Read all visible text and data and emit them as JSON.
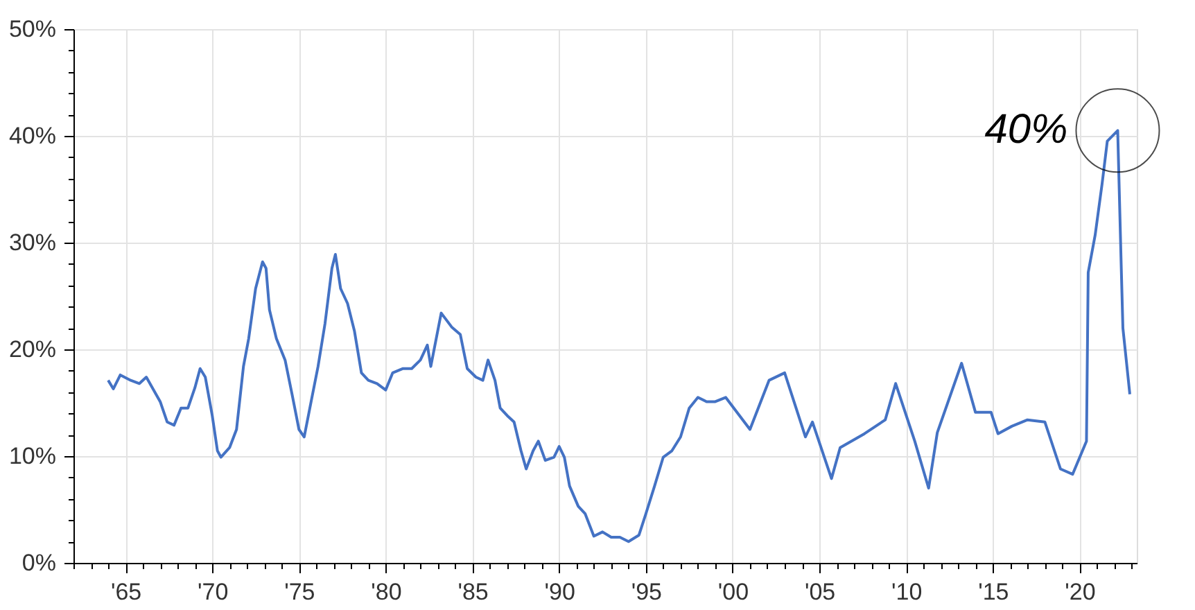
{
  "chart_data": {
    "type": "line",
    "x": [
      1964.0,
      1964.3,
      1964.7,
      1965.3,
      1965.8,
      1966.2,
      1967.0,
      1967.4,
      1967.8,
      1968.2,
      1968.6,
      1969.0,
      1969.3,
      1969.6,
      1970.0,
      1970.3,
      1970.5,
      1971.0,
      1971.4,
      1971.8,
      1972.1,
      1972.5,
      1972.9,
      1973.1,
      1973.3,
      1973.7,
      1974.2,
      1974.6,
      1975.0,
      1975.3,
      1975.7,
      1976.1,
      1976.5,
      1976.9,
      1977.1,
      1977.4,
      1977.8,
      1978.2,
      1978.6,
      1979.0,
      1979.5,
      1980.0,
      1980.4,
      1981.0,
      1981.5,
      1982.0,
      1982.4,
      1982.6,
      1983.2,
      1983.8,
      1984.3,
      1984.7,
      1985.2,
      1985.6,
      1985.9,
      1986.3,
      1986.6,
      1987.0,
      1987.4,
      1987.8,
      1988.1,
      1988.5,
      1988.8,
      1989.2,
      1989.7,
      1990.0,
      1990.3,
      1990.6,
      1991.1,
      1991.5,
      1992.0,
      1992.5,
      1993.0,
      1993.5,
      1994.0,
      1994.6,
      1995.0,
      1995.5,
      1996.0,
      1996.5,
      1997.0,
      1997.5,
      1998.0,
      1998.5,
      1999.0,
      1999.6,
      2001.0,
      2002.1,
      2003.0,
      2004.2,
      2004.6,
      2005.7,
      2006.2,
      2007.6,
      2008.8,
      2009.4,
      2010.5,
      2011.3,
      2011.8,
      2013.2,
      2014.0,
      2014.9,
      2015.3,
      2016.1,
      2017.0,
      2018.0,
      2018.9,
      2019.6,
      2020.4,
      2020.5,
      2020.9,
      2021.3,
      2021.6,
      2022.2,
      2022.4,
      2022.5,
      2022.9
    ],
    "series": [
      {
        "color": "#4472c4",
        "values": [
          17.1,
          16.3,
          17.6,
          17.1,
          16.8,
          17.4,
          15.1,
          13.2,
          12.9,
          14.5,
          14.5,
          16.4,
          18.2,
          17.4,
          13.8,
          10.5,
          9.9,
          10.8,
          12.5,
          18.4,
          21.0,
          25.7,
          28.2,
          27.6,
          23.7,
          21.0,
          19.0,
          15.8,
          12.5,
          11.8,
          15.1,
          18.4,
          22.4,
          27.6,
          28.9,
          25.7,
          24.3,
          21.7,
          17.8,
          17.1,
          16.8,
          16.2,
          17.8,
          18.2,
          18.2,
          19.0,
          20.4,
          18.4,
          23.4,
          22.1,
          21.4,
          18.2,
          17.4,
          17.1,
          19.0,
          17.1,
          14.5,
          13.8,
          13.2,
          10.5,
          8.8,
          10.5,
          11.4,
          9.6,
          9.9,
          10.9,
          9.9,
          7.2,
          5.3,
          4.6,
          2.5,
          2.9,
          2.4,
          2.4,
          2.0,
          2.6,
          4.6,
          7.2,
          9.9,
          10.5,
          11.8,
          14.5,
          15.5,
          15.1,
          15.1,
          15.5,
          12.5,
          17.1,
          17.8,
          11.8,
          13.2,
          7.9,
          10.8,
          12.1,
          13.4,
          16.8,
          11.4,
          7.0,
          12.2,
          18.7,
          14.1,
          14.1,
          12.1,
          12.8,
          13.4,
          13.2,
          8.8,
          8.3,
          11.4,
          27.2,
          30.7,
          35.5,
          39.5,
          40.5,
          28.0,
          22.0,
          15.8
        ]
      }
    ],
    "xlim": [
      1962,
      2023.3
    ],
    "xticks": [
      {
        "value": 1962,
        "label": null
      },
      {
        "value": 1963,
        "label": null
      },
      {
        "value": 1964,
        "label": null
      },
      {
        "value": 1965,
        "label": "'65"
      },
      {
        "value": 1966,
        "label": null
      },
      {
        "value": 1967,
        "label": null
      },
      {
        "value": 1968,
        "label": null
      },
      {
        "value": 1969,
        "label": null
      },
      {
        "value": 1970,
        "label": "'70"
      },
      {
        "value": 1971,
        "label": null
      },
      {
        "value": 1972,
        "label": null
      },
      {
        "value": 1973,
        "label": null
      },
      {
        "value": 1974,
        "label": null
      },
      {
        "value": 1975,
        "label": "'75"
      },
      {
        "value": 1976,
        "label": null
      },
      {
        "value": 1977,
        "label": null
      },
      {
        "value": 1978,
        "label": null
      },
      {
        "value": 1979,
        "label": null
      },
      {
        "value": 1980,
        "label": "'80"
      },
      {
        "value": 1981,
        "label": null
      },
      {
        "value": 1982,
        "label": null
      },
      {
        "value": 1983,
        "label": null
      },
      {
        "value": 1984,
        "label": null
      },
      {
        "value": 1985,
        "label": "'85"
      },
      {
        "value": 1986,
        "label": null
      },
      {
        "value": 1987,
        "label": null
      },
      {
        "value": 1988,
        "label": null
      },
      {
        "value": 1989,
        "label": null
      },
      {
        "value": 1990,
        "label": "'90"
      },
      {
        "value": 1991,
        "label": null
      },
      {
        "value": 1992,
        "label": null
      },
      {
        "value": 1993,
        "label": null
      },
      {
        "value": 1994,
        "label": null
      },
      {
        "value": 1995,
        "label": "'95"
      },
      {
        "value": 1996,
        "label": null
      },
      {
        "value": 1997,
        "label": null
      },
      {
        "value": 1998,
        "label": null
      },
      {
        "value": 1999,
        "label": null
      },
      {
        "value": 2000,
        "label": "'00"
      },
      {
        "value": 2001,
        "label": null
      },
      {
        "value": 2002,
        "label": null
      },
      {
        "value": 2003,
        "label": null
      },
      {
        "value": 2004,
        "label": null
      },
      {
        "value": 2005,
        "label": "'05"
      },
      {
        "value": 2006,
        "label": null
      },
      {
        "value": 2007,
        "label": null
      },
      {
        "value": 2008,
        "label": null
      },
      {
        "value": 2009,
        "label": null
      },
      {
        "value": 2010,
        "label": "'10"
      },
      {
        "value": 2011,
        "label": null
      },
      {
        "value": 2012,
        "label": null
      },
      {
        "value": 2013,
        "label": null
      },
      {
        "value": 2014,
        "label": null
      },
      {
        "value": 2015,
        "label": "'15"
      },
      {
        "value": 2016,
        "label": null
      },
      {
        "value": 2017,
        "label": null
      },
      {
        "value": 2018,
        "label": null
      },
      {
        "value": 2019,
        "label": null
      },
      {
        "value": 2020,
        "label": "'20"
      },
      {
        "value": 2021,
        "label": null
      },
      {
        "value": 2022,
        "label": null
      },
      {
        "value": 2023,
        "label": null
      }
    ],
    "ylim": [
      0,
      50
    ],
    "yticks": [
      {
        "value": 0,
        "label": "0%"
      },
      {
        "value": 2,
        "label": null
      },
      {
        "value": 4,
        "label": null
      },
      {
        "value": 6,
        "label": null
      },
      {
        "value": 8,
        "label": null
      },
      {
        "value": 10,
        "label": "10%"
      },
      {
        "value": 12,
        "label": null
      },
      {
        "value": 14,
        "label": null
      },
      {
        "value": 16,
        "label": null
      },
      {
        "value": 18,
        "label": null
      },
      {
        "value": 20,
        "label": "20%"
      },
      {
        "value": 22,
        "label": null
      },
      {
        "value": 24,
        "label": null
      },
      {
        "value": 26,
        "label": null
      },
      {
        "value": 28,
        "label": null
      },
      {
        "value": 30,
        "label": "30%"
      },
      {
        "value": 32,
        "label": null
      },
      {
        "value": 34,
        "label": null
      },
      {
        "value": 36,
        "label": null
      },
      {
        "value": 38,
        "label": null
      },
      {
        "value": 40,
        "label": "40%"
      },
      {
        "value": 42,
        "label": null
      },
      {
        "value": 44,
        "label": null
      },
      {
        "value": 46,
        "label": null
      },
      {
        "value": 48,
        "label": null
      },
      {
        "value": 50,
        "label": "50%"
      }
    ],
    "grid": true,
    "annotations": [
      {
        "text": "40%",
        "x": 2022.2,
        "y": 40.5
      }
    ]
  }
}
